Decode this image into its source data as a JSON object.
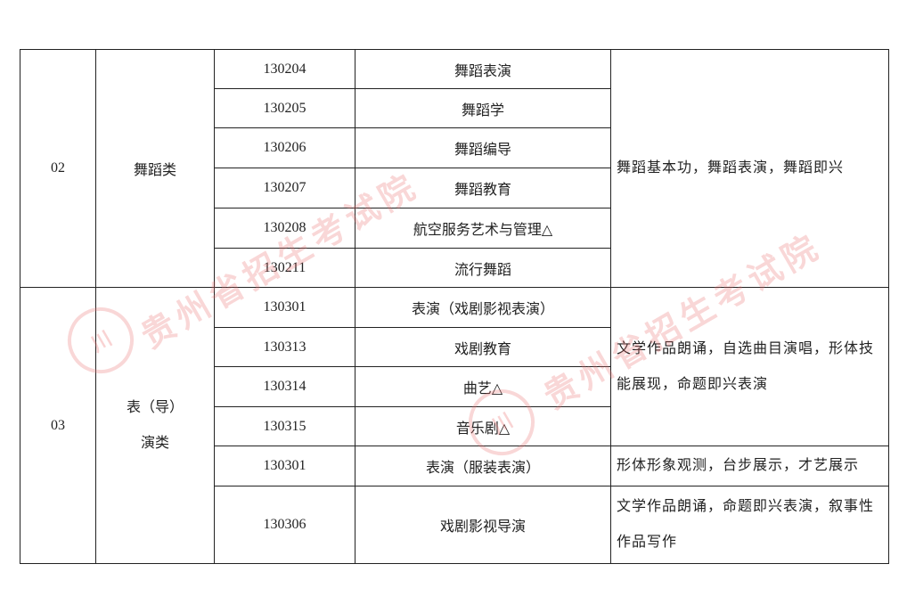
{
  "rows_group": [
    {
      "num": "02",
      "category": "舞蹈类",
      "requirement": "舞蹈基本功，舞蹈表演，舞蹈即兴",
      "majors": [
        {
          "code": "130204",
          "name": "舞蹈表演"
        },
        {
          "code": "130205",
          "name": "舞蹈学"
        },
        {
          "code": "130206",
          "name": "舞蹈编导"
        },
        {
          "code": "130207",
          "name": "舞蹈教育"
        },
        {
          "code": "130208",
          "name": "航空服务艺术与管理△"
        },
        {
          "code": "130211",
          "name": "流行舞蹈"
        }
      ]
    },
    {
      "num": "03",
      "category_line1": "表（导）",
      "category_line2": "演类",
      "majors": [
        {
          "code": "130301",
          "name": "表演（戏剧影视表演）"
        },
        {
          "code": "130313",
          "name": "戏剧教育"
        },
        {
          "code": "130314",
          "name": "曲艺△"
        },
        {
          "code": "130315",
          "name": "音乐剧△"
        },
        {
          "code": "130301",
          "name": "表演（服装表演）"
        },
        {
          "code": "130306",
          "name": "戏剧影视导演"
        }
      ],
      "requirements": [
        "文学作品朗诵，自选曲目演唱，形体技能展现，命题即兴表演",
        "形体形象观测，台步展示，才艺展示",
        "文学作品朗诵，命题即兴表演，叙事性作品写作"
      ]
    }
  ],
  "watermark": {
    "text": "贵州省招生考试院",
    "seal_text": "川",
    "color": "#eb6e6e"
  }
}
